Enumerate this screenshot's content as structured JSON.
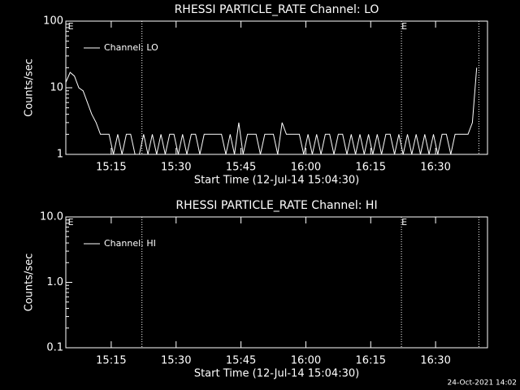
{
  "chart_data": [
    {
      "type": "line",
      "title": "RHESSI PARTICLE_RATE Channel: LO",
      "xlabel": "Start Time (12-Jul-14 15:04:30)",
      "ylabel": "Counts/sec",
      "log_y": true,
      "xlim": [
        0,
        97.5
      ],
      "ylim": [
        1,
        100
      ],
      "yticks": [
        1,
        10,
        100
      ],
      "xticks": [
        {
          "value": 10.5,
          "label": "15:15"
        },
        {
          "value": 25.5,
          "label": "15:30"
        },
        {
          "value": 40.5,
          "label": "15:45"
        },
        {
          "value": 55.5,
          "label": "16:00"
        },
        {
          "value": 70.5,
          "label": "16:15"
        },
        {
          "value": 85.5,
          "label": "16:30"
        }
      ],
      "vlines": [
        17.6,
        77.6,
        95.5
      ],
      "annotations": [
        {
          "text": "E",
          "x": 0.5
        },
        {
          "text": "E",
          "x": 77.6
        }
      ],
      "legend": "upper left",
      "series": [
        {
          "name": "Channel: LO",
          "color": "#ffffff",
          "x": [
            0,
            1,
            2,
            3,
            4,
            5,
            6,
            7,
            8,
            9,
            10,
            11,
            12,
            13,
            14,
            15,
            16,
            17,
            18,
            19,
            20,
            21,
            22,
            23,
            24,
            25,
            26,
            27,
            28,
            29,
            30,
            31,
            32,
            33,
            34,
            35,
            36,
            37,
            38,
            39,
            40,
            41,
            42,
            43,
            44,
            45,
            46,
            47,
            48,
            49,
            50,
            51,
            52,
            53,
            54,
            55,
            56,
            57,
            58,
            59,
            60,
            61,
            62,
            63,
            64,
            65,
            66,
            67,
            68,
            69,
            70,
            71,
            72,
            73,
            74,
            75,
            76,
            77,
            78,
            79,
            80,
            81,
            82,
            83,
            84,
            85,
            86,
            87,
            88,
            89,
            90,
            91,
            92,
            93,
            94,
            95
          ],
          "values": [
            12,
            17,
            15,
            10,
            9,
            6,
            4,
            3,
            2,
            2,
            2,
            1,
            2,
            1,
            2,
            2,
            1,
            1,
            2,
            1,
            2,
            1,
            2,
            1,
            2,
            2,
            1,
            2,
            1,
            2,
            2,
            1,
            2,
            2,
            2,
            2,
            2,
            1,
            2,
            1,
            3,
            1,
            2,
            2,
            2,
            1,
            2,
            2,
            2,
            1,
            3,
            2,
            2,
            2,
            2,
            1,
            2,
            1,
            2,
            1,
            2,
            2,
            1,
            2,
            2,
            1,
            2,
            1,
            2,
            1,
            2,
            1,
            2,
            1,
            2,
            2,
            1,
            2,
            1,
            2,
            1,
            2,
            1,
            2,
            1,
            2,
            1,
            2,
            2,
            1,
            2,
            2,
            2,
            2,
            3,
            20
          ]
        }
      ]
    },
    {
      "type": "line",
      "title": "RHESSI PARTICLE_RATE Channel: HI",
      "xlabel": "Start Time (12-Jul-14 15:04:30)",
      "ylabel": "Counts/sec",
      "log_y": true,
      "xlim": [
        0,
        97.5
      ],
      "ylim": [
        0.1,
        10
      ],
      "yticks": [
        0.1,
        {
          "value": 1,
          "label": "1.0"
        },
        {
          "value": 10,
          "label": "10.0"
        }
      ],
      "xticks": [
        {
          "value": 10.5,
          "label": "15:15"
        },
        {
          "value": 25.5,
          "label": "15:30"
        },
        {
          "value": 40.5,
          "label": "15:45"
        },
        {
          "value": 55.5,
          "label": "16:00"
        },
        {
          "value": 70.5,
          "label": "16:15"
        },
        {
          "value": 85.5,
          "label": "16:30"
        }
      ],
      "vlines": [
        17.6,
        77.6,
        95.5
      ],
      "annotations": [
        {
          "text": "E",
          "x": 0.5
        },
        {
          "text": "E",
          "x": 77.6
        }
      ],
      "legend": "upper left",
      "series": [
        {
          "name": "Channel: HI",
          "color": "#ffffff",
          "x": [],
          "values": []
        }
      ]
    }
  ],
  "footer": "24-Oct-2021 14:02"
}
